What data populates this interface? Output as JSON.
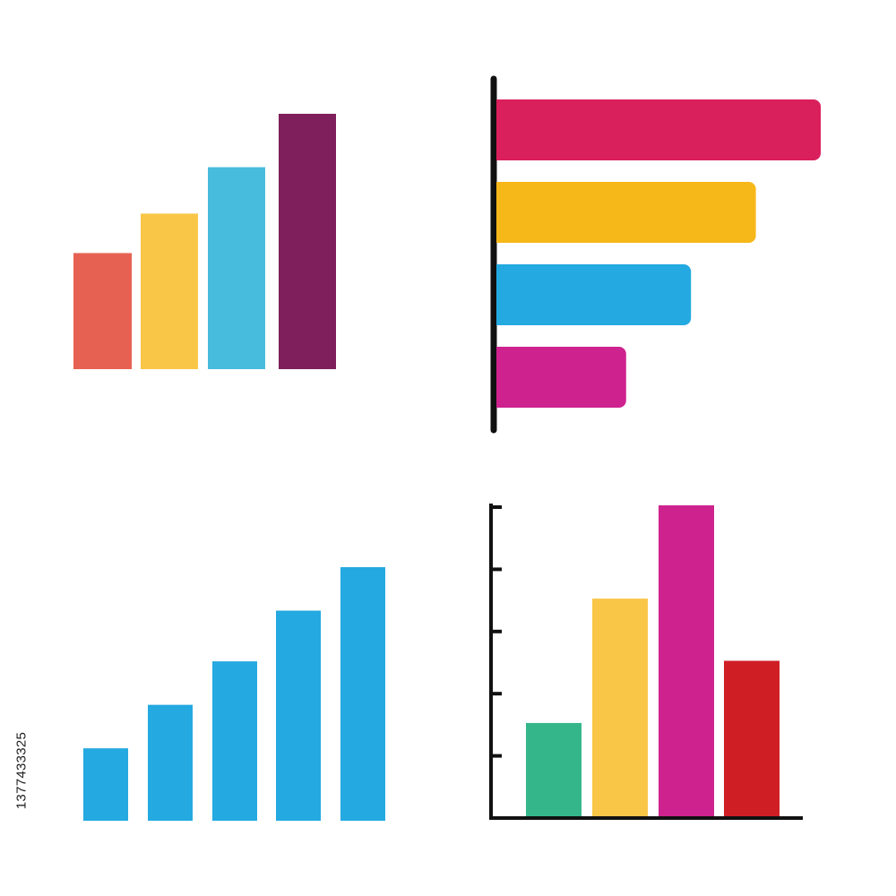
{
  "image_id_label": "1377433325",
  "chart_data": [
    {
      "type": "bar",
      "orientation": "vertical",
      "categories": [
        "",
        "",
        "",
        ""
      ],
      "values": [
        5,
        6.7,
        8.7,
        11
      ],
      "colors": [
        "#e76152",
        "#fac648",
        "#47bcdc",
        "#7f1f5b"
      ],
      "ylim": [
        0,
        11
      ],
      "axes": "none",
      "grid": false
    },
    {
      "type": "bar",
      "orientation": "horizontal",
      "categories": [
        "",
        "",
        "",
        ""
      ],
      "values": [
        10,
        8,
        6,
        4
      ],
      "colors": [
        "#da1f5d",
        "#f6b718",
        "#24a9e1",
        "#ce238f"
      ],
      "xlim": [
        0,
        10
      ],
      "axes": "left-axis-line",
      "grid": false
    },
    {
      "type": "bar",
      "orientation": "vertical",
      "categories": [
        "",
        "",
        "",
        "",
        ""
      ],
      "values": [
        1,
        1.6,
        2.2,
        2.9,
        3.5
      ],
      "colors": [
        "#24a9e1",
        "#24a9e1",
        "#24a9e1",
        "#24a9e1",
        "#24a9e1"
      ],
      "ylim": [
        0,
        3.5
      ],
      "axes": "none",
      "grid": false
    },
    {
      "type": "bar",
      "orientation": "vertical",
      "categories": [
        "",
        "",
        "",
        ""
      ],
      "values": [
        1.5,
        3.5,
        5,
        2.5
      ],
      "colors": [
        "#35b68a",
        "#fac648",
        "#ce238f",
        "#cf1f25"
      ],
      "ylim": [
        0,
        5
      ],
      "yticks": [
        1,
        2,
        3,
        4,
        5
      ],
      "axes": "left-and-bottom-with-ticks",
      "grid": false
    }
  ]
}
